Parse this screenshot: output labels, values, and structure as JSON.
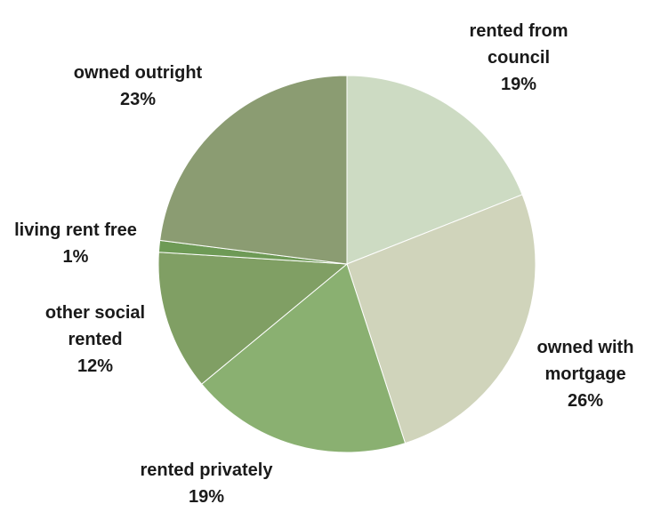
{
  "chart_data": {
    "type": "pie",
    "slices": [
      {
        "label": "rented from council",
        "value": 19,
        "value_text": "19%",
        "color": "#cddbc3"
      },
      {
        "label": "owned with mortgage",
        "value": 26,
        "value_text": "26%",
        "color": "#d0d4bb"
      },
      {
        "label": "rented privately",
        "value": 19,
        "value_text": "19%",
        "color": "#8ab071"
      },
      {
        "label": "other social rented",
        "value": 12,
        "value_text": "12%",
        "color": "#809f64"
      },
      {
        "label": "living rent free",
        "value": 1,
        "value_text": "1%",
        "color": "#6e9a56"
      },
      {
        "label": "owned outright",
        "value": 23,
        "value_text": "23%",
        "color": "#8b9c72"
      }
    ]
  },
  "labels": {
    "rented_council": [
      "rented from",
      "council",
      "19%"
    ],
    "owned_mortgage": [
      "owned with",
      "mortgage",
      "26%"
    ],
    "rented_privately": [
      "rented privately",
      "19%"
    ],
    "other_social": [
      "other social",
      "rented",
      "12%"
    ],
    "rent_free": [
      "living rent free",
      "1%"
    ],
    "owned_outright": [
      "owned outright",
      "23%"
    ]
  }
}
